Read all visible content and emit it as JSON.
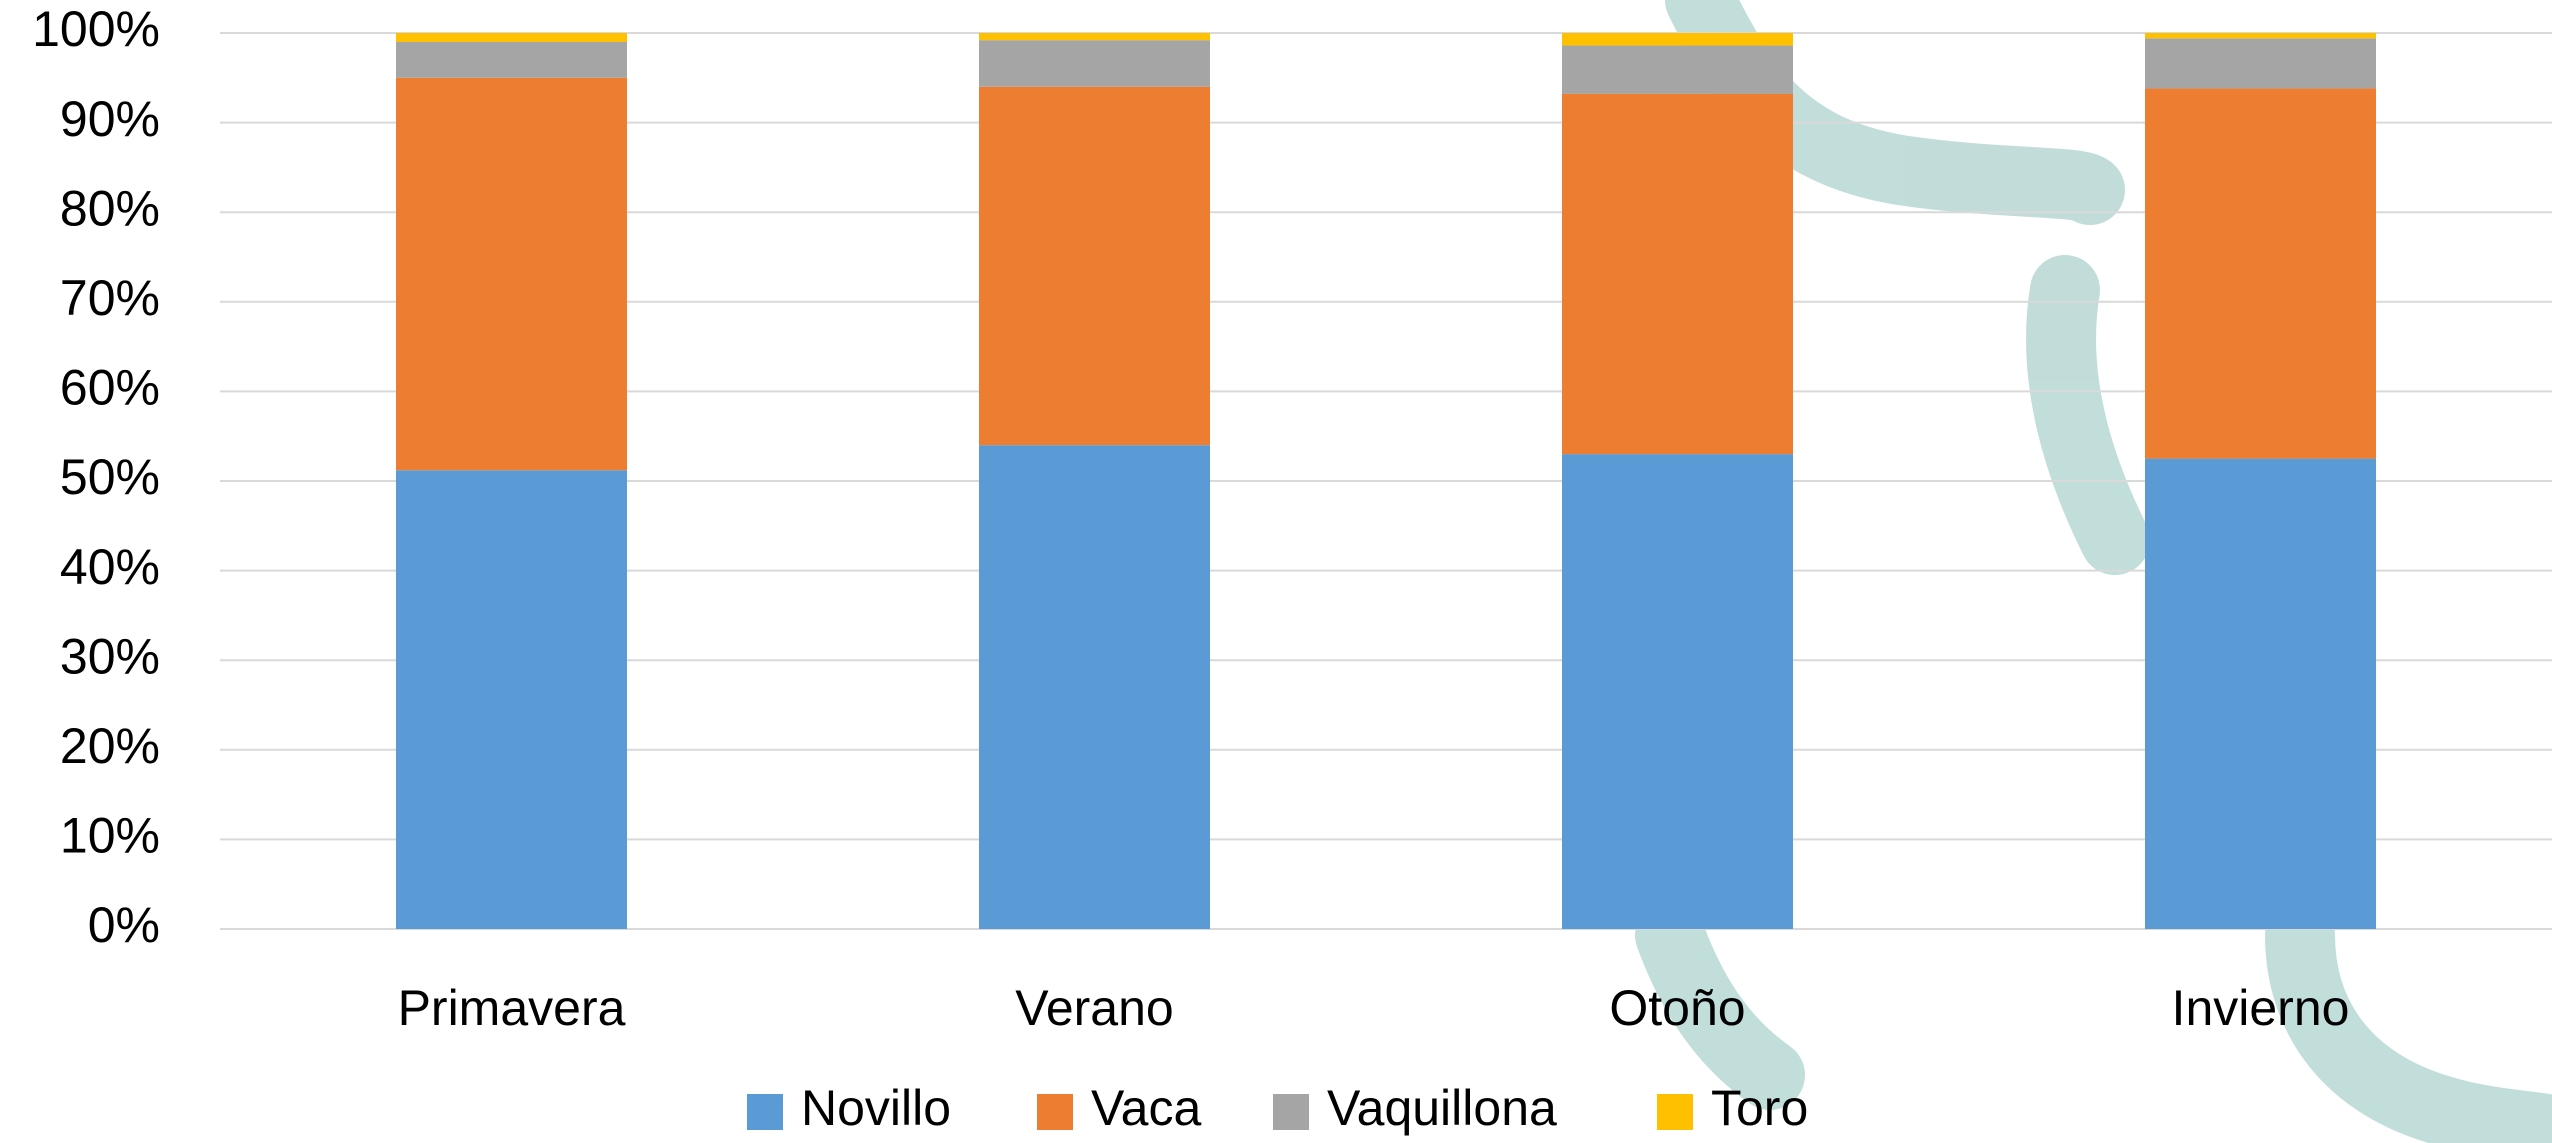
{
  "chart_data": {
    "type": "stacked_bar",
    "categories": [
      "Primavera",
      "Verano",
      "Otoño",
      "Invierno"
    ],
    "series": [
      {
        "name": "Novillo",
        "color": "#5b9bd5",
        "values": [
          51.2,
          54.0,
          53.0,
          52.5
        ]
      },
      {
        "name": "Vaca",
        "color": "#ed7d31",
        "values": [
          43.8,
          40.0,
          40.2,
          41.3
        ]
      },
      {
        "name": "Vaquillona",
        "color": "#a5a5a5",
        "values": [
          4.0,
          5.2,
          5.4,
          5.6
        ]
      },
      {
        "name": "Toro",
        "color": "#ffc000",
        "values": [
          1.0,
          0.8,
          1.4,
          0.6
        ]
      }
    ],
    "ylim": [
      0,
      100
    ],
    "yticks": [
      {
        "value": 0,
        "label": "0%"
      },
      {
        "value": 10,
        "label": "10%"
      },
      {
        "value": 20,
        "label": "20%"
      },
      {
        "value": 30,
        "label": "30%"
      },
      {
        "value": 40,
        "label": "40%"
      },
      {
        "value": 50,
        "label": "50%"
      },
      {
        "value": 60,
        "label": "60%"
      },
      {
        "value": 70,
        "label": "70%"
      },
      {
        "value": 80,
        "label": "80%"
      },
      {
        "value": 90,
        "label": "90%"
      },
      {
        "value": 100,
        "label": "100%"
      }
    ],
    "grid": true,
    "legend": "bottom"
  }
}
